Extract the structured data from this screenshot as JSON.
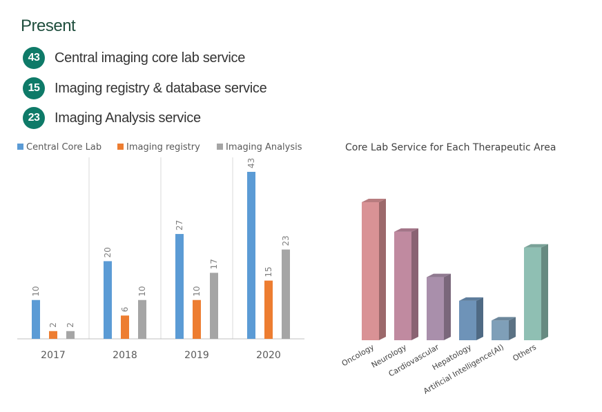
{
  "header": {
    "title": "Present",
    "services": [
      {
        "count": "43",
        "label": "Central imaging core lab service"
      },
      {
        "count": "15",
        "label": "Imaging registry & database service"
      },
      {
        "count": "23",
        "label": "Imaging Analysis service"
      }
    ]
  },
  "chart_data": [
    {
      "type": "bar",
      "title": "",
      "categories": [
        "2017",
        "2018",
        "2019",
        "2020"
      ],
      "series": [
        {
          "name": "Central Core Lab",
          "values": [
            10,
            20,
            27,
            43
          ],
          "color": "#5b9bd5"
        },
        {
          "name": "Imaging registry",
          "values": [
            2,
            6,
            10,
            15
          ],
          "color": "#ed7d31"
        },
        {
          "name": "Imaging Analysis",
          "values": [
            2,
            10,
            17,
            23
          ],
          "color": "#a5a5a5"
        }
      ],
      "ylim": [
        0,
        45
      ],
      "grid": "vertical separators",
      "legend": "top"
    },
    {
      "type": "bar",
      "title": "Core Lab Service for Each Therapeutic Area",
      "categories": [
        "Oncology",
        "Neurology",
        "Cardiovascular",
        "Hepatology",
        "Artificial Intelligence(AI)",
        "Others"
      ],
      "values": [
        35,
        27.5,
        16,
        10,
        5,
        23.5
      ],
      "colors": [
        "#d99295",
        "#c08aa0",
        "#a98fab",
        "#6e93b8",
        "#7f9fb8",
        "#8fbfb3"
      ],
      "style": "3d"
    }
  ]
}
